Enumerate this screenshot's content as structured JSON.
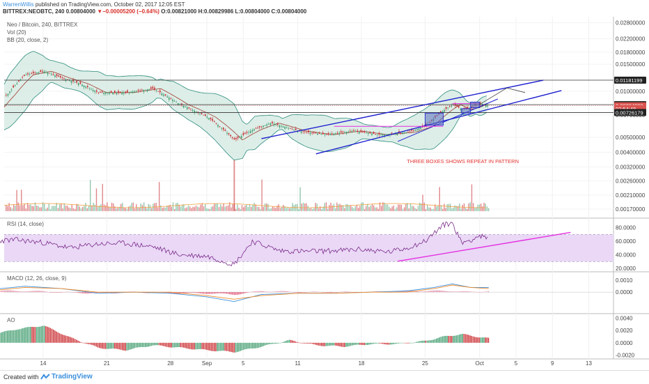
{
  "header": {
    "author": "WarrenWillis",
    "published": " published on TradingView.com, October 02, 2017 12:05 EST",
    "symbol": "BITTREX:NEOBTC, 240",
    "last": "0.00804000",
    "change_arrow": "▼",
    "change": "−0.00005200 (−0.64%)",
    "ohlc": "O:0.00821000 H:0.00829986 L:0.00804000 C:0.00804000"
  },
  "footer": {
    "created": "Created with",
    "brand": "TradingView"
  },
  "colors": {
    "candle_up": "#3c9a6b",
    "candle_down": "#c8272b",
    "bb_band": "#2c8c7c",
    "bb_fill": "#cfe7de",
    "bb_mid": "#9c3a2e",
    "trend": "#1d1fcf",
    "magenta": "#e52fe2",
    "rsi": "#7a2a8a",
    "rsi_band": "#ead8f6",
    "macd": "#3a8fdd",
    "signal": "#f08a28",
    "annotation": "#e2332f",
    "box": "#5a6fc0",
    "price_tag": "#d9534f",
    "dark_tag": "#222222"
  },
  "chart_data": [
    {
      "type": "candlestick",
      "title": "Neo / Bitcoin, 240, BITTREX",
      "legend": [
        "Neo / Bitcoin, 240, BITTREX",
        "Vol (20)",
        "BB (20, close, 2)"
      ],
      "x_tick_labels": [
        "14",
        "21",
        "28",
        "Sep",
        "5",
        "11",
        "18",
        "25",
        "Oct",
        "5",
        "9",
        "13"
      ],
      "y_tick_labels": [
        "0.02800000",
        "0.02200000",
        "0.01800000",
        "0.01500000",
        "0.01000000",
        "0.00700000",
        "0.00500000",
        "0.00400000",
        "0.00320000",
        "0.00260000",
        "0.00210000",
        "0.00170000"
      ],
      "y_scale": "log",
      "ylim": [
        0.0015,
        0.03
      ],
      "price_labels": [
        "0.01181199",
        "0.00817498",
        "0.00804000",
        "02:54:48",
        "0.00726179"
      ],
      "horizontal_lines": [
        0.01181199,
        0.00817498,
        0.00726179
      ],
      "close_series": [
        {
          "date": "Aug 8",
          "value": 0.0068
        },
        {
          "date": "Aug 10",
          "value": 0.0095
        },
        {
          "date": "Aug 12",
          "value": 0.0128
        },
        {
          "date": "Aug 14",
          "value": 0.0135
        },
        {
          "date": "Aug 16",
          "value": 0.0122
        },
        {
          "date": "Aug 18",
          "value": 0.0112
        },
        {
          "date": "Aug 20",
          "value": 0.0098
        },
        {
          "date": "Aug 23",
          "value": 0.0098
        },
        {
          "date": "Aug 26",
          "value": 0.0104
        },
        {
          "date": "Aug 29",
          "value": 0.0082
        },
        {
          "date": "Sep 1",
          "value": 0.0068
        },
        {
          "date": "Sep 4",
          "value": 0.0048
        },
        {
          "date": "Sep 6",
          "value": 0.0056
        },
        {
          "date": "Sep 8",
          "value": 0.0062
        },
        {
          "date": "Sep 11",
          "value": 0.0055
        },
        {
          "date": "Sep 14",
          "value": 0.0052
        },
        {
          "date": "Sep 17",
          "value": 0.0055
        },
        {
          "date": "Sep 20",
          "value": 0.0052
        },
        {
          "date": "Sep 23",
          "value": 0.0054
        },
        {
          "date": "Sep 25",
          "value": 0.0059
        },
        {
          "date": "Sep 27",
          "value": 0.0075
        },
        {
          "date": "Sep 28",
          "value": 0.0082
        },
        {
          "date": "Sep 29",
          "value": 0.0076
        },
        {
          "date": "Sep 30",
          "value": 0.0078
        },
        {
          "date": "Oct 1",
          "value": 0.0083
        },
        {
          "date": "Oct 2",
          "value": 0.00804
        }
      ],
      "annotations": [
        {
          "text": "THREE BOXES SHOWS REPEAT IN PATTERN"
        }
      ]
    },
    {
      "type": "line",
      "title": "RSI (14, close)",
      "y_tick_labels": [
        "80.0000",
        "60.0000",
        "40.0000",
        "20.0000"
      ],
      "ylim": [
        17,
        93
      ],
      "band": [
        30,
        70
      ],
      "series": [
        {
          "name": "RSI (14, close)",
          "values": [
            {
              "date": "Aug 8",
              "value": 60
            },
            {
              "date": "Aug 11",
              "value": 62
            },
            {
              "date": "Aug 14",
              "value": 58
            },
            {
              "date": "Aug 17",
              "value": 50
            },
            {
              "date": "Aug 20",
              "value": 56
            },
            {
              "date": "Aug 23",
              "value": 57
            },
            {
              "date": "Aug 26",
              "value": 52
            },
            {
              "date": "Aug 29",
              "value": 40
            },
            {
              "date": "Sep 1",
              "value": 38
            },
            {
              "date": "Sep 4",
              "value": 26
            },
            {
              "date": "Sep 6",
              "value": 60
            },
            {
              "date": "Sep 9",
              "value": 46
            },
            {
              "date": "Sep 12",
              "value": 45
            },
            {
              "date": "Sep 15",
              "value": 46
            },
            {
              "date": "Sep 18",
              "value": 48
            },
            {
              "date": "Sep 21",
              "value": 44
            },
            {
              "date": "Sep 23",
              "value": 50
            },
            {
              "date": "Sep 25",
              "value": 60
            },
            {
              "date": "Sep 27",
              "value": 84
            },
            {
              "date": "Sep 28",
              "value": 87
            },
            {
              "date": "Sep 29",
              "value": 58
            },
            {
              "date": "Sep 30",
              "value": 62
            },
            {
              "date": "Oct 1",
              "value": 68
            },
            {
              "date": "Oct 2",
              "value": 63
            }
          ]
        }
      ]
    },
    {
      "type": "line",
      "title": "MACD (12, 26, close, 9)",
      "y_tick_labels": [
        "0.0010",
        "0.0000"
      ],
      "ylim": [
        -0.0017,
        0.0016
      ],
      "series": [
        {
          "name": "MACD",
          "values": [
            {
              "date": "Aug 8",
              "value": 0.0002
            },
            {
              "date": "Aug 12",
              "value": 0.0005
            },
            {
              "date": "Aug 16",
              "value": 0.0003
            },
            {
              "date": "Aug 20",
              "value": -0.0001
            },
            {
              "date": "Aug 24",
              "value": 0.0
            },
            {
              "date": "Aug 28",
              "value": -0.0001
            },
            {
              "date": "Sep 1",
              "value": -0.0004
            },
            {
              "date": "Sep 4",
              "value": -0.0008
            },
            {
              "date": "Sep 7",
              "value": -0.0002
            },
            {
              "date": "Sep 11",
              "value": -0.0001
            },
            {
              "date": "Sep 15",
              "value": -0.0001
            },
            {
              "date": "Sep 19",
              "value": 0.0
            },
            {
              "date": "Sep 23",
              "value": 0.0001
            },
            {
              "date": "Sep 26",
              "value": 0.0004
            },
            {
              "date": "Sep 28",
              "value": 0.0007
            },
            {
              "date": "Sep 30",
              "value": 0.0004
            },
            {
              "date": "Oct 2",
              "value": 0.0004
            }
          ]
        },
        {
          "name": "Signal",
          "values": [
            {
              "date": "Aug 8",
              "value": 0.0001
            },
            {
              "date": "Aug 12",
              "value": 0.0004
            },
            {
              "date": "Aug 16",
              "value": 0.0003
            },
            {
              "date": "Aug 20",
              "value": 0.0
            },
            {
              "date": "Aug 24",
              "value": 0.0
            },
            {
              "date": "Aug 28",
              "value": 0.0
            },
            {
              "date": "Sep 1",
              "value": -0.0003
            },
            {
              "date": "Sep 4",
              "value": -0.0006
            },
            {
              "date": "Sep 7",
              "value": -0.0003
            },
            {
              "date": "Sep 11",
              "value": -0.0001
            },
            {
              "date": "Sep 15",
              "value": -0.0001
            },
            {
              "date": "Sep 19",
              "value": 0.0
            },
            {
              "date": "Sep 23",
              "value": 0.0
            },
            {
              "date": "Sep 26",
              "value": 0.0003
            },
            {
              "date": "Sep 28",
              "value": 0.0006
            },
            {
              "date": "Sep 30",
              "value": 0.0004
            },
            {
              "date": "Oct 2",
              "value": 0.0003
            }
          ]
        }
      ]
    },
    {
      "type": "bar",
      "title": "AO",
      "y_tick_labels": [
        "0.0040",
        "0.0020",
        "0.0000",
        "-0.0020"
      ],
      "ylim": [
        -0.0025,
        0.0045
      ],
      "series": [
        {
          "name": "AO",
          "values": [
            {
              "date": "Aug 8",
              "value": 0.0012
            },
            {
              "date": "Aug 11",
              "value": 0.0022
            },
            {
              "date": "Aug 14",
              "value": 0.0028
            },
            {
              "date": "Aug 17",
              "value": 0.0008
            },
            {
              "date": "Aug 20",
              "value": -0.0008
            },
            {
              "date": "Aug 23",
              "value": -0.0012
            },
            {
              "date": "Aug 26",
              "value": -0.0004
            },
            {
              "date": "Aug 29",
              "value": -0.0008
            },
            {
              "date": "Sep 1",
              "value": -0.0012
            },
            {
              "date": "Sep 4",
              "value": -0.0015
            },
            {
              "date": "Sep 7",
              "value": -0.0006
            },
            {
              "date": "Sep 10",
              "value": 0.0004
            },
            {
              "date": "Sep 13",
              "value": -0.0004
            },
            {
              "date": "Sep 16",
              "value": -0.0006
            },
            {
              "date": "Sep 19",
              "value": -0.0002
            },
            {
              "date": "Sep 22",
              "value": -0.0002
            },
            {
              "date": "Sep 25",
              "value": 0.0003
            },
            {
              "date": "Sep 27",
              "value": 0.001
            },
            {
              "date": "Sep 29",
              "value": 0.0014
            },
            {
              "date": "Oct 1",
              "value": 0.0009
            },
            {
              "date": "Oct 2",
              "value": 0.0007
            }
          ]
        }
      ]
    }
  ]
}
